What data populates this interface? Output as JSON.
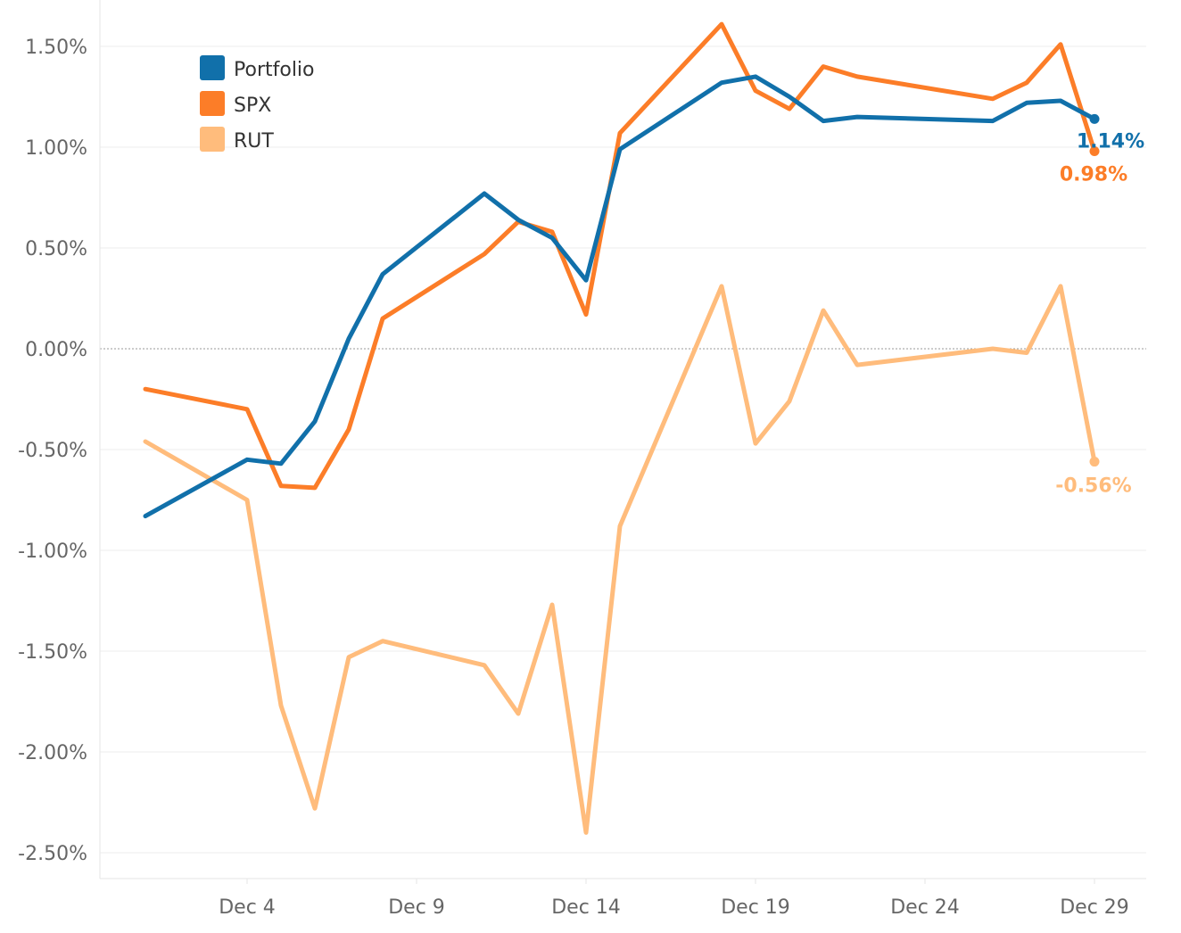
{
  "chart_data": {
    "type": "line",
    "title": "",
    "xlabel": "",
    "ylabel": "",
    "x_tick_labels": [
      "Dec 4",
      "Dec 9",
      "Dec 14",
      "Dec 19",
      "Dec 24",
      "Dec 29"
    ],
    "x_tick_days": [
      4,
      9,
      14,
      19,
      24,
      29
    ],
    "x_range_days": [
      0.8,
      30.2
    ],
    "ylim": [
      -2.5,
      1.5
    ],
    "y_ticks": [
      1.5,
      1.0,
      0.5,
      0.0,
      -0.5,
      -1.0,
      -1.5,
      -2.0,
      -2.5
    ],
    "y_tick_labels": [
      "1.50%",
      "1.00%",
      "0.50%",
      "0.00%",
      "-0.50%",
      "-1.00%",
      "-1.50%",
      "-2.00%",
      "-2.50%"
    ],
    "grid": true,
    "zero_line": "dotted",
    "legend_position": "top-left",
    "series": [
      {
        "name": "Portfolio",
        "color": "#1170aa",
        "end_label": "1.14%",
        "points": [
          {
            "x": "Dec 1",
            "y": -0.83
          },
          {
            "x": "Dec 4",
            "y": -0.55
          },
          {
            "x": "Dec 5",
            "y": -0.57
          },
          {
            "x": "Dec 6",
            "y": -0.36
          },
          {
            "x": "Dec 7",
            "y": 0.05
          },
          {
            "x": "Dec 8",
            "y": 0.37
          },
          {
            "x": "Dec 11",
            "y": 0.77
          },
          {
            "x": "Dec 12",
            "y": 0.64
          },
          {
            "x": "Dec 13",
            "y": 0.55
          },
          {
            "x": "Dec 14",
            "y": 0.34
          },
          {
            "x": "Dec 15",
            "y": 0.99
          },
          {
            "x": "Dec 18",
            "y": 1.32
          },
          {
            "x": "Dec 19",
            "y": 1.35
          },
          {
            "x": "Dec 20",
            "y": 1.25
          },
          {
            "x": "Dec 21",
            "y": 1.13
          },
          {
            "x": "Dec 22",
            "y": 1.15
          },
          {
            "x": "Dec 26",
            "y": 1.13
          },
          {
            "x": "Dec 27",
            "y": 1.22
          },
          {
            "x": "Dec 28",
            "y": 1.23
          },
          {
            "x": "Dec 29",
            "y": 1.14
          }
        ]
      },
      {
        "name": "SPX",
        "color": "#fc7d28",
        "end_label": "0.98%",
        "points": [
          {
            "x": "Dec 1",
            "y": -0.2
          },
          {
            "x": "Dec 4",
            "y": -0.3
          },
          {
            "x": "Dec 5",
            "y": -0.68
          },
          {
            "x": "Dec 6",
            "y": -0.69
          },
          {
            "x": "Dec 7",
            "y": -0.4
          },
          {
            "x": "Dec 8",
            "y": 0.15
          },
          {
            "x": "Dec 11",
            "y": 0.47
          },
          {
            "x": "Dec 12",
            "y": 0.63
          },
          {
            "x": "Dec 13",
            "y": 0.58
          },
          {
            "x": "Dec 14",
            "y": 0.17
          },
          {
            "x": "Dec 15",
            "y": 1.07
          },
          {
            "x": "Dec 18",
            "y": 1.61
          },
          {
            "x": "Dec 19",
            "y": 1.28
          },
          {
            "x": "Dec 20",
            "y": 1.19
          },
          {
            "x": "Dec 21",
            "y": 1.4
          },
          {
            "x": "Dec 22",
            "y": 1.35
          },
          {
            "x": "Dec 26",
            "y": 1.24
          },
          {
            "x": "Dec 27",
            "y": 1.32
          },
          {
            "x": "Dec 28",
            "y": 1.51
          },
          {
            "x": "Dec 29",
            "y": 0.98
          }
        ]
      },
      {
        "name": "RUT",
        "color": "#ffbc7c",
        "end_label": "-0.56%",
        "points": [
          {
            "x": "Dec 1",
            "y": -0.46
          },
          {
            "x": "Dec 4",
            "y": -0.75
          },
          {
            "x": "Dec 5",
            "y": -1.77
          },
          {
            "x": "Dec 6",
            "y": -2.28
          },
          {
            "x": "Dec 7",
            "y": -1.53
          },
          {
            "x": "Dec 8",
            "y": -1.45
          },
          {
            "x": "Dec 11",
            "y": -1.57
          },
          {
            "x": "Dec 12",
            "y": -1.81
          },
          {
            "x": "Dec 13",
            "y": -1.27
          },
          {
            "x": "Dec 14",
            "y": -2.4
          },
          {
            "x": "Dec 15",
            "y": -0.88
          },
          {
            "x": "Dec 18",
            "y": 0.31
          },
          {
            "x": "Dec 19",
            "y": -0.47
          },
          {
            "x": "Dec 20",
            "y": -0.26
          },
          {
            "x": "Dec 21",
            "y": 0.19
          },
          {
            "x": "Dec 22",
            "y": -0.08
          },
          {
            "x": "Dec 26",
            "y": 0.0
          },
          {
            "x": "Dec 27",
            "y": -0.02
          },
          {
            "x": "Dec 28",
            "y": 0.31
          },
          {
            "x": "Dec 29",
            "y": -0.56
          }
        ]
      }
    ]
  }
}
